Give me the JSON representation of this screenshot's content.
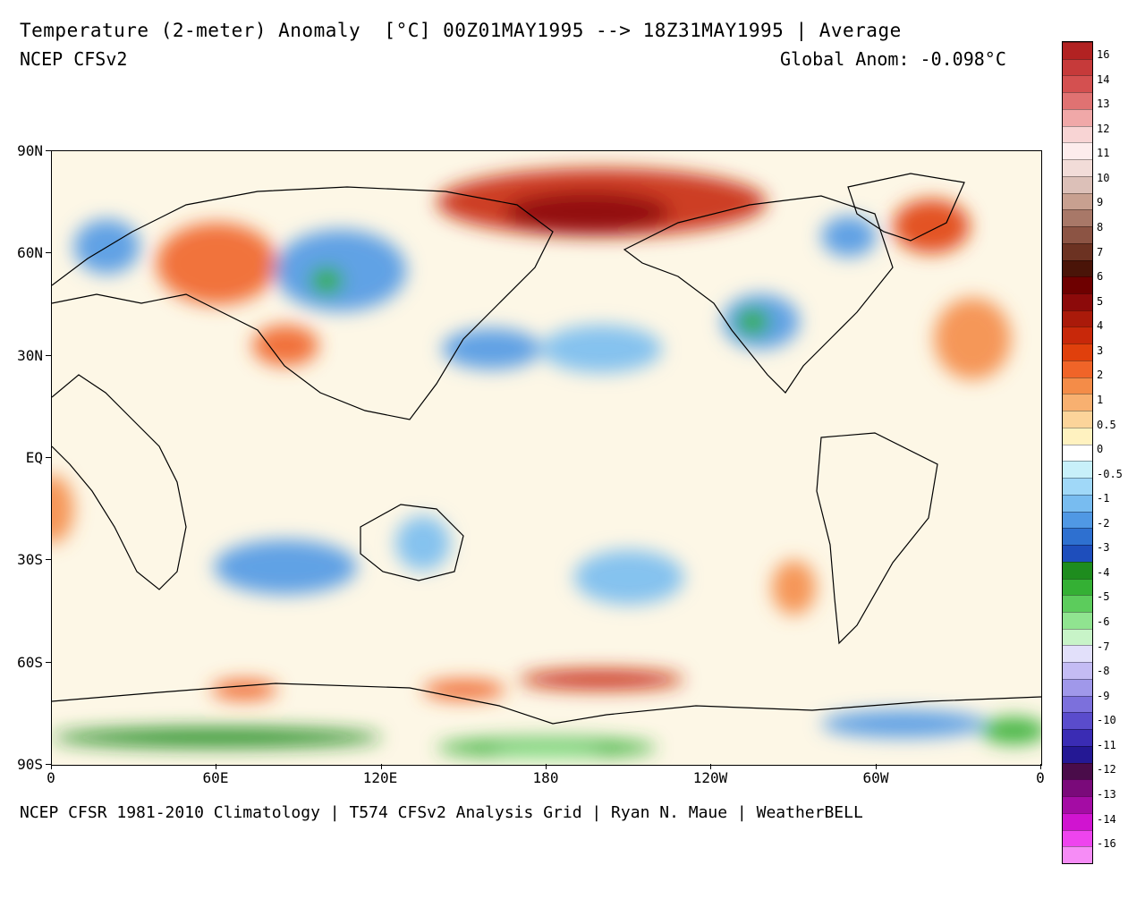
{
  "header": {
    "title": "Temperature (2-meter) Anomaly  [°C] 00Z01MAY1995 --> 18Z31MAY1995 | Average",
    "model": "NCEP CFSv2",
    "global_anom": "Global Anom: -0.098°C"
  },
  "footer": {
    "credit": "NCEP CFSR 1981-2010 Climatology | T574 CFSv2 Analysis Grid | Ryan N. Maue | WeatherBELL"
  },
  "axes": {
    "lat_labels": [
      "90N",
      "60N",
      "30N",
      "EQ",
      "30S",
      "60S",
      "90S"
    ],
    "lon_labels": [
      "0",
      "60E",
      "120E",
      "180",
      "120W",
      "60W",
      "0"
    ]
  },
  "colorbar": {
    "labels": [
      "16",
      "14",
      "13",
      "12",
      "11",
      "10",
      "9",
      "8",
      "7",
      "6",
      "5",
      "4",
      "3",
      "2",
      "1",
      "0.5",
      "0",
      "-0.5",
      "-1",
      "-2",
      "-3",
      "-4",
      "-5",
      "-6",
      "-7",
      "-8",
      "-9",
      "-10",
      "-11",
      "-12",
      "-13",
      "-14",
      "-16"
    ],
    "colors": [
      "#b22222",
      "#c63a3a",
      "#d45050",
      "#e07272",
      "#f0a8a8",
      "#f8d4d4",
      "#fdecec",
      "#f2dcd8",
      "#dcc0b8",
      "#c8a090",
      "#a87868",
      "#8c5444",
      "#6c3222",
      "#4a1408",
      "#6e0000",
      "#8c0a0a",
      "#aa1a0a",
      "#c8280a",
      "#e0400c",
      "#f06428",
      "#f48c48",
      "#f8b070",
      "#fcd49a",
      "#fff2c0",
      "#ffffff",
      "#c8f0fa",
      "#a0d8f8",
      "#78bcf0",
      "#5098e4",
      "#2e70d0",
      "#1e4ebc",
      "#1e8c1e",
      "#34b034",
      "#5ccc5c",
      "#90e490",
      "#c8f4c8",
      "#e2e0fa",
      "#c4bcf4",
      "#a098ea",
      "#7c70dc",
      "#5a4ccc",
      "#3a2cb4",
      "#241894",
      "#4a0c4a",
      "#7a0a7a",
      "#a40ca4",
      "#d014d0",
      "#ee44ee",
      "#f68cf6"
    ],
    "tick_every": 1
  },
  "map": {
    "anomaly_blobs": [
      {
        "lon": 200,
        "lat": 75,
        "rx": 60,
        "ry": 10,
        "color": "#c8280a"
      },
      {
        "lon": 195,
        "lat": 72,
        "rx": 30,
        "ry": 6,
        "color": "#8c0a0a"
      },
      {
        "lon": 320,
        "lat": 68,
        "rx": 14,
        "ry": 8,
        "color": "#e0400c"
      },
      {
        "lon": 60,
        "lat": 57,
        "rx": 22,
        "ry": 12,
        "color": "#f06428"
      },
      {
        "lon": 20,
        "lat": 62,
        "rx": 12,
        "ry": 8,
        "color": "#5098e4"
      },
      {
        "lon": 105,
        "lat": 55,
        "rx": 24,
        "ry": 12,
        "color": "#5098e4"
      },
      {
        "lon": 100,
        "lat": 52,
        "rx": 6,
        "ry": 4,
        "color": "#34b034"
      },
      {
        "lon": 85,
        "lat": 33,
        "rx": 12,
        "ry": 6,
        "color": "#f06428"
      },
      {
        "lon": 160,
        "lat": 32,
        "rx": 18,
        "ry": 6,
        "color": "#5098e4"
      },
      {
        "lon": 200,
        "lat": 32,
        "rx": 22,
        "ry": 7,
        "color": "#78bcf0"
      },
      {
        "lon": 258,
        "lat": 40,
        "rx": 14,
        "ry": 8,
        "color": "#5098e4"
      },
      {
        "lon": 255,
        "lat": 40,
        "rx": 6,
        "ry": 4,
        "color": "#34b034"
      },
      {
        "lon": 290,
        "lat": 65,
        "rx": 10,
        "ry": 6,
        "color": "#5098e4"
      },
      {
        "lon": 335,
        "lat": 35,
        "rx": 14,
        "ry": 12,
        "color": "#f48c48"
      },
      {
        "lon": 135,
        "lat": -25,
        "rx": 10,
        "ry": 8,
        "color": "#78bcf0"
      },
      {
        "lon": 85,
        "lat": -32,
        "rx": 26,
        "ry": 8,
        "color": "#5098e4"
      },
      {
        "lon": 210,
        "lat": -35,
        "rx": 20,
        "ry": 8,
        "color": "#78bcf0"
      },
      {
        "lon": 270,
        "lat": -38,
        "rx": 8,
        "ry": 8,
        "color": "#f48c48"
      },
      {
        "lon": 0,
        "lat": -15,
        "rx": 8,
        "ry": 10,
        "color": "#f48c48"
      },
      {
        "lon": 200,
        "lat": -65,
        "rx": 30,
        "ry": 3,
        "color": "#c8280a"
      },
      {
        "lon": 150,
        "lat": -68,
        "rx": 15,
        "ry": 3,
        "color": "#f06428"
      },
      {
        "lon": 70,
        "lat": -68,
        "rx": 12,
        "ry": 3,
        "color": "#f06428"
      },
      {
        "lon": 180,
        "lat": -85,
        "rx": 40,
        "ry": 3,
        "color": "#34b034"
      },
      {
        "lon": 180,
        "lat": -86,
        "rx": 20,
        "ry": 2,
        "color": "#90e490"
      },
      {
        "lon": 60,
        "lat": -82,
        "rx": 60,
        "ry": 3,
        "color": "#1e8c1e"
      },
      {
        "lon": 310,
        "lat": -78,
        "rx": 30,
        "ry": 4,
        "color": "#5098e4"
      },
      {
        "lon": 350,
        "lat": -80,
        "rx": 12,
        "ry": 4,
        "color": "#34b034"
      }
    ]
  }
}
